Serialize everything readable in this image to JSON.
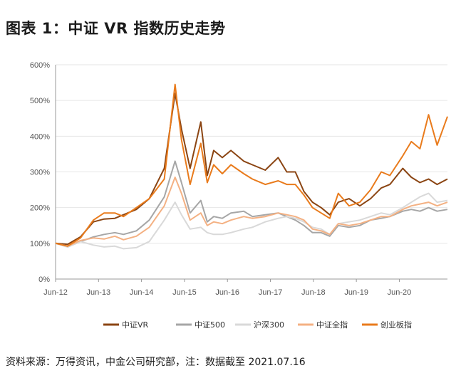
{
  "title": "图表 1：中证 VR 指数历史走势",
  "source": "资料来源：万得资讯，中金公司研究部，注：数据截至 2021.07.16",
  "chart_data": {
    "type": "line",
    "ylim": [
      0,
      600
    ],
    "yticks": [
      0,
      100,
      200,
      300,
      400,
      500,
      600
    ],
    "ytick_labels": [
      "0%",
      "100%",
      "200%",
      "300%",
      "400%",
      "500%",
      "600%"
    ],
    "xlim": [
      2012.42,
      2021.54
    ],
    "xticks": [
      2012.42,
      2013.42,
      2014.42,
      2015.42,
      2016.42,
      2017.42,
      2018.42,
      2019.42,
      2020.42
    ],
    "xtick_labels": [
      "Jun-12",
      "Jun-13",
      "Jun-14",
      "Jun-15",
      "Jun-16",
      "Jun-17",
      "Jun-18",
      "Jun-19",
      "Jun-20"
    ],
    "legend_position": "bottom",
    "series": [
      {
        "name": "中证VR",
        "color": "#8B4513",
        "points": [
          [
            2012.42,
            100
          ],
          [
            2012.7,
            97
          ],
          [
            2013.0,
            118
          ],
          [
            2013.3,
            160
          ],
          [
            2013.55,
            168
          ],
          [
            2013.8,
            170
          ],
          [
            2014.0,
            180
          ],
          [
            2014.3,
            195
          ],
          [
            2014.6,
            225
          ],
          [
            2014.95,
            310
          ],
          [
            2015.2,
            520
          ],
          [
            2015.35,
            420
          ],
          [
            2015.55,
            310
          ],
          [
            2015.8,
            440
          ],
          [
            2015.95,
            290
          ],
          [
            2016.1,
            360
          ],
          [
            2016.3,
            340
          ],
          [
            2016.5,
            360
          ],
          [
            2016.8,
            330
          ],
          [
            2017.0,
            320
          ],
          [
            2017.3,
            305
          ],
          [
            2017.6,
            340
          ],
          [
            2017.8,
            300
          ],
          [
            2018.0,
            300
          ],
          [
            2018.2,
            245
          ],
          [
            2018.4,
            215
          ],
          [
            2018.6,
            200
          ],
          [
            2018.8,
            180
          ],
          [
            2019.0,
            215
          ],
          [
            2019.25,
            225
          ],
          [
            2019.5,
            205
          ],
          [
            2019.75,
            225
          ],
          [
            2020.0,
            255
          ],
          [
            2020.2,
            265
          ],
          [
            2020.5,
            310
          ],
          [
            2020.7,
            285
          ],
          [
            2020.9,
            270
          ],
          [
            2021.1,
            280
          ],
          [
            2021.3,
            265
          ],
          [
            2021.54,
            280
          ]
        ]
      },
      {
        "name": "中证500",
        "color": "#a6a6a6",
        "points": [
          [
            2012.42,
            100
          ],
          [
            2012.7,
            90
          ],
          [
            2013.0,
            105
          ],
          [
            2013.3,
            118
          ],
          [
            2013.55,
            125
          ],
          [
            2013.8,
            130
          ],
          [
            2014.0,
            125
          ],
          [
            2014.3,
            135
          ],
          [
            2014.6,
            165
          ],
          [
            2014.95,
            230
          ],
          [
            2015.2,
            330
          ],
          [
            2015.35,
            270
          ],
          [
            2015.55,
            185
          ],
          [
            2015.8,
            220
          ],
          [
            2015.95,
            160
          ],
          [
            2016.1,
            175
          ],
          [
            2016.3,
            170
          ],
          [
            2016.5,
            185
          ],
          [
            2016.8,
            190
          ],
          [
            2017.0,
            175
          ],
          [
            2017.3,
            180
          ],
          [
            2017.6,
            185
          ],
          [
            2017.8,
            175
          ],
          [
            2018.0,
            165
          ],
          [
            2018.2,
            150
          ],
          [
            2018.4,
            130
          ],
          [
            2018.6,
            130
          ],
          [
            2018.8,
            120
          ],
          [
            2019.0,
            150
          ],
          [
            2019.25,
            145
          ],
          [
            2019.5,
            150
          ],
          [
            2019.75,
            165
          ],
          [
            2020.0,
            170
          ],
          [
            2020.2,
            175
          ],
          [
            2020.5,
            190
          ],
          [
            2020.7,
            195
          ],
          [
            2020.9,
            190
          ],
          [
            2021.1,
            200
          ],
          [
            2021.3,
            190
          ],
          [
            2021.54,
            195
          ]
        ]
      },
      {
        "name": "沪深300",
        "color": "#d9d9d9",
        "points": [
          [
            2012.42,
            100
          ],
          [
            2012.7,
            90
          ],
          [
            2013.0,
            105
          ],
          [
            2013.3,
            95
          ],
          [
            2013.55,
            90
          ],
          [
            2013.8,
            92
          ],
          [
            2014.0,
            85
          ],
          [
            2014.3,
            88
          ],
          [
            2014.6,
            105
          ],
          [
            2014.95,
            165
          ],
          [
            2015.2,
            215
          ],
          [
            2015.35,
            180
          ],
          [
            2015.55,
            140
          ],
          [
            2015.8,
            145
          ],
          [
            2015.95,
            130
          ],
          [
            2016.1,
            125
          ],
          [
            2016.3,
            125
          ],
          [
            2016.5,
            130
          ],
          [
            2016.8,
            140
          ],
          [
            2017.0,
            145
          ],
          [
            2017.3,
            160
          ],
          [
            2017.6,
            170
          ],
          [
            2017.8,
            175
          ],
          [
            2018.0,
            170
          ],
          [
            2018.2,
            160
          ],
          [
            2018.4,
            145
          ],
          [
            2018.6,
            140
          ],
          [
            2018.8,
            125
          ],
          [
            2019.0,
            155
          ],
          [
            2019.25,
            160
          ],
          [
            2019.5,
            165
          ],
          [
            2019.75,
            175
          ],
          [
            2020.0,
            185
          ],
          [
            2020.2,
            180
          ],
          [
            2020.5,
            200
          ],
          [
            2020.7,
            215
          ],
          [
            2020.9,
            230
          ],
          [
            2021.1,
            240
          ],
          [
            2021.3,
            215
          ],
          [
            2021.54,
            220
          ]
        ]
      },
      {
        "name": "中证全指",
        "color": "#f4b183",
        "points": [
          [
            2012.42,
            100
          ],
          [
            2012.7,
            92
          ],
          [
            2013.0,
            108
          ],
          [
            2013.3,
            115
          ],
          [
            2013.55,
            112
          ],
          [
            2013.8,
            120
          ],
          [
            2014.0,
            110
          ],
          [
            2014.3,
            120
          ],
          [
            2014.6,
            145
          ],
          [
            2014.95,
            205
          ],
          [
            2015.2,
            285
          ],
          [
            2015.35,
            240
          ],
          [
            2015.55,
            165
          ],
          [
            2015.8,
            185
          ],
          [
            2015.95,
            150
          ],
          [
            2016.1,
            160
          ],
          [
            2016.3,
            155
          ],
          [
            2016.5,
            165
          ],
          [
            2016.8,
            175
          ],
          [
            2017.0,
            170
          ],
          [
            2017.3,
            175
          ],
          [
            2017.6,
            185
          ],
          [
            2017.8,
            180
          ],
          [
            2018.0,
            175
          ],
          [
            2018.2,
            165
          ],
          [
            2018.4,
            140
          ],
          [
            2018.6,
            135
          ],
          [
            2018.8,
            125
          ],
          [
            2019.0,
            155
          ],
          [
            2019.25,
            150
          ],
          [
            2019.5,
            155
          ],
          [
            2019.75,
            165
          ],
          [
            2020.0,
            175
          ],
          [
            2020.2,
            175
          ],
          [
            2020.5,
            195
          ],
          [
            2020.7,
            205
          ],
          [
            2020.9,
            210
          ],
          [
            2021.1,
            215
          ],
          [
            2021.3,
            205
          ],
          [
            2021.54,
            215
          ]
        ]
      },
      {
        "name": "创业板指",
        "color": "#e97b1c",
        "points": [
          [
            2012.42,
            100
          ],
          [
            2012.7,
            92
          ],
          [
            2013.0,
            115
          ],
          [
            2013.3,
            165
          ],
          [
            2013.55,
            185
          ],
          [
            2013.8,
            185
          ],
          [
            2014.0,
            175
          ],
          [
            2014.3,
            200
          ],
          [
            2014.6,
            225
          ],
          [
            2014.95,
            280
          ],
          [
            2015.2,
            545
          ],
          [
            2015.35,
            390
          ],
          [
            2015.55,
            265
          ],
          [
            2015.8,
            380
          ],
          [
            2015.95,
            270
          ],
          [
            2016.1,
            320
          ],
          [
            2016.3,
            295
          ],
          [
            2016.5,
            320
          ],
          [
            2016.8,
            295
          ],
          [
            2017.0,
            280
          ],
          [
            2017.3,
            265
          ],
          [
            2017.6,
            275
          ],
          [
            2017.8,
            265
          ],
          [
            2018.0,
            265
          ],
          [
            2018.2,
            235
          ],
          [
            2018.4,
            200
          ],
          [
            2018.6,
            185
          ],
          [
            2018.8,
            170
          ],
          [
            2019.0,
            240
          ],
          [
            2019.25,
            205
          ],
          [
            2019.5,
            215
          ],
          [
            2019.75,
            250
          ],
          [
            2020.0,
            300
          ],
          [
            2020.2,
            290
          ],
          [
            2020.5,
            345
          ],
          [
            2020.7,
            385
          ],
          [
            2020.9,
            365
          ],
          [
            2021.1,
            460
          ],
          [
            2021.3,
            375
          ],
          [
            2021.54,
            455
          ]
        ]
      }
    ]
  }
}
